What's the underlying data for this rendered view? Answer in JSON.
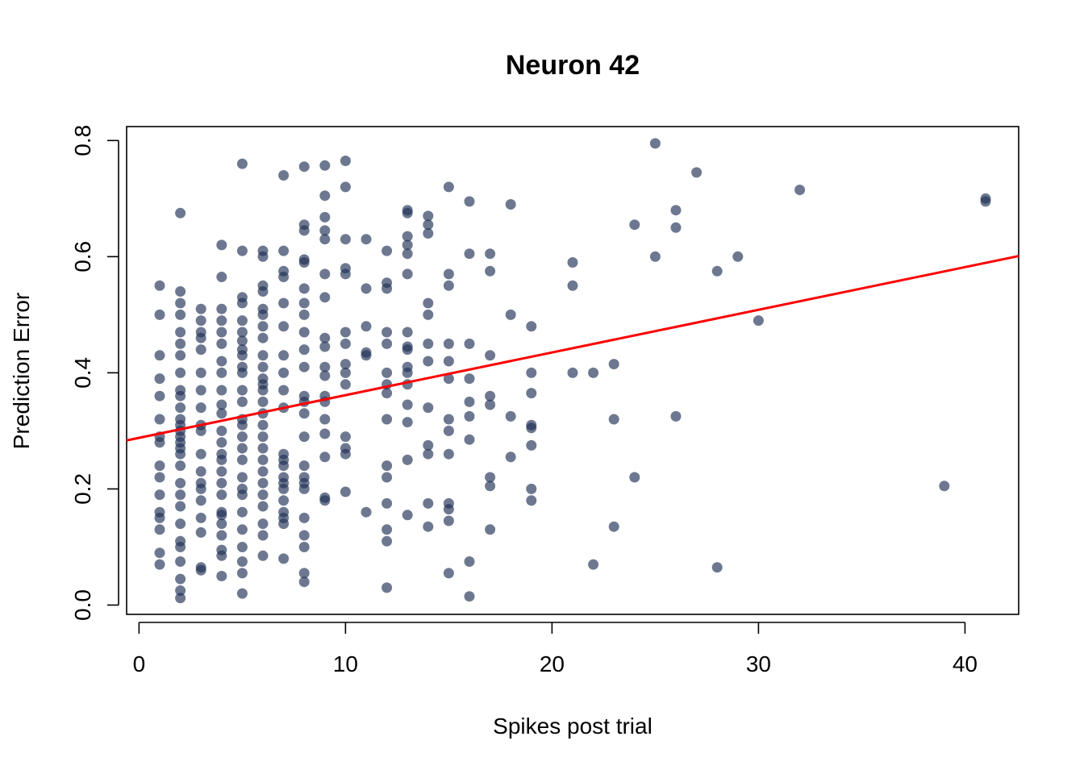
{
  "chart_data": {
    "type": "scatter",
    "title": "Neuron 42",
    "xlabel": "Spikes post trial",
    "ylabel": "Prediction Error",
    "xlim": [
      -0.6,
      42.6
    ],
    "ylim": [
      -0.016,
      0.824
    ],
    "x_ticks": [
      0,
      10,
      20,
      30,
      40
    ],
    "y_ticks": [
      0.0,
      0.2,
      0.4,
      0.6,
      0.8
    ],
    "x_tick_labels": [
      "0",
      "10",
      "20",
      "30",
      "40"
    ],
    "y_tick_labels": [
      "0.0",
      "0.2",
      "0.4",
      "0.6",
      "0.8"
    ],
    "grid": false,
    "legend": "none",
    "point_color": "#1e2f55",
    "fit_line": {
      "color": "#ff0000",
      "intercept": 0.288,
      "slope": 0.00735
    },
    "points": [
      [
        1,
        0.55
      ],
      [
        1,
        0.5
      ],
      [
        1,
        0.43
      ],
      [
        1,
        0.39
      ],
      [
        1,
        0.36
      ],
      [
        1,
        0.32
      ],
      [
        1,
        0.29
      ],
      [
        1,
        0.28
      ],
      [
        1,
        0.24
      ],
      [
        1,
        0.22
      ],
      [
        1,
        0.19
      ],
      [
        1,
        0.16
      ],
      [
        1,
        0.15
      ],
      [
        1,
        0.13
      ],
      [
        1,
        0.09
      ],
      [
        1,
        0.07
      ],
      [
        2,
        0.675
      ],
      [
        2,
        0.54
      ],
      [
        2,
        0.52
      ],
      [
        2,
        0.5
      ],
      [
        2,
        0.47
      ],
      [
        2,
        0.45
      ],
      [
        2,
        0.43
      ],
      [
        2,
        0.4
      ],
      [
        2,
        0.37
      ],
      [
        2,
        0.36
      ],
      [
        2,
        0.34
      ],
      [
        2,
        0.32
      ],
      [
        2,
        0.31
      ],
      [
        2,
        0.3
      ],
      [
        2,
        0.29
      ],
      [
        2,
        0.28
      ],
      [
        2,
        0.27
      ],
      [
        2,
        0.26
      ],
      [
        2,
        0.24
      ],
      [
        2,
        0.21
      ],
      [
        2,
        0.19
      ],
      [
        2,
        0.17
      ],
      [
        2,
        0.14
      ],
      [
        2,
        0.11
      ],
      [
        2,
        0.1
      ],
      [
        2,
        0.075
      ],
      [
        2,
        0.045
      ],
      [
        2,
        0.025
      ],
      [
        2,
        0.012
      ],
      [
        3,
        0.51
      ],
      [
        3,
        0.49
      ],
      [
        3,
        0.47
      ],
      [
        3,
        0.46
      ],
      [
        3,
        0.44
      ],
      [
        3,
        0.4
      ],
      [
        3,
        0.37
      ],
      [
        3,
        0.34
      ],
      [
        3,
        0.31
      ],
      [
        3,
        0.3
      ],
      [
        3,
        0.26
      ],
      [
        3,
        0.23
      ],
      [
        3,
        0.21
      ],
      [
        3,
        0.2
      ],
      [
        3,
        0.18
      ],
      [
        3,
        0.15
      ],
      [
        3,
        0.125
      ],
      [
        3,
        0.065
      ],
      [
        3,
        0.06
      ],
      [
        4,
        0.62
      ],
      [
        4,
        0.565
      ],
      [
        4,
        0.51
      ],
      [
        4,
        0.49
      ],
      [
        4,
        0.47
      ],
      [
        4,
        0.45
      ],
      [
        4,
        0.42
      ],
      [
        4,
        0.4
      ],
      [
        4,
        0.37
      ],
      [
        4,
        0.345
      ],
      [
        4,
        0.33
      ],
      [
        4,
        0.3
      ],
      [
        4,
        0.28
      ],
      [
        4,
        0.26
      ],
      [
        4,
        0.25
      ],
      [
        4,
        0.23
      ],
      [
        4,
        0.21
      ],
      [
        4,
        0.19
      ],
      [
        4,
        0.16
      ],
      [
        4,
        0.155
      ],
      [
        4,
        0.14
      ],
      [
        4,
        0.12
      ],
      [
        4,
        0.095
      ],
      [
        4,
        0.085
      ],
      [
        4,
        0.05
      ],
      [
        5,
        0.76
      ],
      [
        5,
        0.61
      ],
      [
        5,
        0.53
      ],
      [
        5,
        0.52
      ],
      [
        5,
        0.49
      ],
      [
        5,
        0.47
      ],
      [
        5,
        0.455
      ],
      [
        5,
        0.44
      ],
      [
        5,
        0.43
      ],
      [
        5,
        0.41
      ],
      [
        5,
        0.4
      ],
      [
        5,
        0.37
      ],
      [
        5,
        0.35
      ],
      [
        5,
        0.32
      ],
      [
        5,
        0.31
      ],
      [
        5,
        0.29
      ],
      [
        5,
        0.27
      ],
      [
        5,
        0.25
      ],
      [
        5,
        0.22
      ],
      [
        5,
        0.2
      ],
      [
        5,
        0.19
      ],
      [
        5,
        0.16
      ],
      [
        5,
        0.13
      ],
      [
        5,
        0.1
      ],
      [
        5,
        0.075
      ],
      [
        5,
        0.055
      ],
      [
        5,
        0.02
      ],
      [
        6,
        0.61
      ],
      [
        6,
        0.6
      ],
      [
        6,
        0.55
      ],
      [
        6,
        0.54
      ],
      [
        6,
        0.51
      ],
      [
        6,
        0.5
      ],
      [
        6,
        0.48
      ],
      [
        6,
        0.46
      ],
      [
        6,
        0.43
      ],
      [
        6,
        0.41
      ],
      [
        6,
        0.39
      ],
      [
        6,
        0.38
      ],
      [
        6,
        0.37
      ],
      [
        6,
        0.35
      ],
      [
        6,
        0.33
      ],
      [
        6,
        0.31
      ],
      [
        6,
        0.29
      ],
      [
        6,
        0.27
      ],
      [
        6,
        0.25
      ],
      [
        6,
        0.23
      ],
      [
        6,
        0.21
      ],
      [
        6,
        0.19
      ],
      [
        6,
        0.17
      ],
      [
        6,
        0.14
      ],
      [
        6,
        0.12
      ],
      [
        6,
        0.085
      ],
      [
        7,
        0.74
      ],
      [
        7,
        0.61
      ],
      [
        7,
        0.575
      ],
      [
        7,
        0.565
      ],
      [
        7,
        0.52
      ],
      [
        7,
        0.48
      ],
      [
        7,
        0.43
      ],
      [
        7,
        0.4
      ],
      [
        7,
        0.37
      ],
      [
        7,
        0.34
      ],
      [
        7,
        0.26
      ],
      [
        7,
        0.25
      ],
      [
        7,
        0.24
      ],
      [
        7,
        0.22
      ],
      [
        7,
        0.21
      ],
      [
        7,
        0.2
      ],
      [
        7,
        0.18
      ],
      [
        7,
        0.16
      ],
      [
        7,
        0.15
      ],
      [
        7,
        0.14
      ],
      [
        7,
        0.08
      ],
      [
        8,
        0.755
      ],
      [
        8,
        0.655
      ],
      [
        8,
        0.645
      ],
      [
        8,
        0.595
      ],
      [
        8,
        0.59
      ],
      [
        8,
        0.545
      ],
      [
        8,
        0.52
      ],
      [
        8,
        0.5
      ],
      [
        8,
        0.47
      ],
      [
        8,
        0.44
      ],
      [
        8,
        0.41
      ],
      [
        8,
        0.36
      ],
      [
        8,
        0.35
      ],
      [
        8,
        0.33
      ],
      [
        8,
        0.29
      ],
      [
        8,
        0.24
      ],
      [
        8,
        0.22
      ],
      [
        8,
        0.21
      ],
      [
        8,
        0.2
      ],
      [
        8,
        0.15
      ],
      [
        8,
        0.12
      ],
      [
        8,
        0.1
      ],
      [
        8,
        0.055
      ],
      [
        8,
        0.04
      ],
      [
        9,
        0.757
      ],
      [
        9,
        0.705
      ],
      [
        9,
        0.668
      ],
      [
        9,
        0.645
      ],
      [
        9,
        0.63
      ],
      [
        9,
        0.57
      ],
      [
        9,
        0.53
      ],
      [
        9,
        0.46
      ],
      [
        9,
        0.445
      ],
      [
        9,
        0.41
      ],
      [
        9,
        0.395
      ],
      [
        9,
        0.36
      ],
      [
        9,
        0.35
      ],
      [
        9,
        0.32
      ],
      [
        9,
        0.295
      ],
      [
        9,
        0.255
      ],
      [
        9,
        0.185
      ],
      [
        9,
        0.18
      ],
      [
        10,
        0.765
      ],
      [
        10,
        0.72
      ],
      [
        10,
        0.63
      ],
      [
        10,
        0.58
      ],
      [
        10,
        0.57
      ],
      [
        10,
        0.47
      ],
      [
        10,
        0.45
      ],
      [
        10,
        0.415
      ],
      [
        10,
        0.4
      ],
      [
        10,
        0.38
      ],
      [
        10,
        0.29
      ],
      [
        10,
        0.27
      ],
      [
        10,
        0.26
      ],
      [
        10,
        0.195
      ],
      [
        11,
        0.63
      ],
      [
        11,
        0.545
      ],
      [
        11,
        0.48
      ],
      [
        11,
        0.435
      ],
      [
        11,
        0.43
      ],
      [
        11,
        0.16
      ],
      [
        12,
        0.61
      ],
      [
        12,
        0.555
      ],
      [
        12,
        0.545
      ],
      [
        12,
        0.47
      ],
      [
        12,
        0.45
      ],
      [
        12,
        0.4
      ],
      [
        12,
        0.38
      ],
      [
        12,
        0.365
      ],
      [
        12,
        0.32
      ],
      [
        12,
        0.24
      ],
      [
        12,
        0.22
      ],
      [
        12,
        0.175
      ],
      [
        12,
        0.13
      ],
      [
        12,
        0.11
      ],
      [
        12,
        0.03
      ],
      [
        13,
        0.68
      ],
      [
        13,
        0.675
      ],
      [
        13,
        0.635
      ],
      [
        13,
        0.62
      ],
      [
        13,
        0.605
      ],
      [
        13,
        0.57
      ],
      [
        13,
        0.47
      ],
      [
        13,
        0.445
      ],
      [
        13,
        0.44
      ],
      [
        13,
        0.41
      ],
      [
        13,
        0.4
      ],
      [
        13,
        0.38
      ],
      [
        13,
        0.345
      ],
      [
        13,
        0.315
      ],
      [
        13,
        0.25
      ],
      [
        13,
        0.155
      ],
      [
        14,
        0.67
      ],
      [
        14,
        0.655
      ],
      [
        14,
        0.64
      ],
      [
        14,
        0.52
      ],
      [
        14,
        0.5
      ],
      [
        14,
        0.45
      ],
      [
        14,
        0.42
      ],
      [
        14,
        0.34
      ],
      [
        14,
        0.275
      ],
      [
        14,
        0.26
      ],
      [
        14,
        0.175
      ],
      [
        14,
        0.135
      ],
      [
        15,
        0.72
      ],
      [
        15,
        0.57
      ],
      [
        15,
        0.55
      ],
      [
        15,
        0.45
      ],
      [
        15,
        0.42
      ],
      [
        15,
        0.39
      ],
      [
        15,
        0.32
      ],
      [
        15,
        0.3
      ],
      [
        15,
        0.26
      ],
      [
        15,
        0.175
      ],
      [
        15,
        0.165
      ],
      [
        15,
        0.145
      ],
      [
        15,
        0.055
      ],
      [
        16,
        0.695
      ],
      [
        16,
        0.605
      ],
      [
        16,
        0.45
      ],
      [
        16,
        0.39
      ],
      [
        16,
        0.35
      ],
      [
        16,
        0.325
      ],
      [
        16,
        0.285
      ],
      [
        16,
        0.075
      ],
      [
        16,
        0.015
      ],
      [
        17,
        0.605
      ],
      [
        17,
        0.575
      ],
      [
        17,
        0.43
      ],
      [
        17,
        0.36
      ],
      [
        17,
        0.345
      ],
      [
        17,
        0.22
      ],
      [
        17,
        0.205
      ],
      [
        17,
        0.13
      ],
      [
        18,
        0.69
      ],
      [
        18,
        0.5
      ],
      [
        18,
        0.325
      ],
      [
        18,
        0.255
      ],
      [
        19,
        0.48
      ],
      [
        19,
        0.4
      ],
      [
        19,
        0.365
      ],
      [
        19,
        0.31
      ],
      [
        19,
        0.305
      ],
      [
        19,
        0.275
      ],
      [
        19,
        0.2
      ],
      [
        19,
        0.18
      ],
      [
        21,
        0.59
      ],
      [
        21,
        0.55
      ],
      [
        21,
        0.4
      ],
      [
        22,
        0.4
      ],
      [
        22,
        0.07
      ],
      [
        23,
        0.415
      ],
      [
        23,
        0.32
      ],
      [
        23,
        0.135
      ],
      [
        24,
        0.655
      ],
      [
        24,
        0.22
      ],
      [
        25,
        0.795
      ],
      [
        25,
        0.6
      ],
      [
        26,
        0.68
      ],
      [
        26,
        0.65
      ],
      [
        26,
        0.325
      ],
      [
        27,
        0.745
      ],
      [
        28,
        0.575
      ],
      [
        28,
        0.065
      ],
      [
        29,
        0.6
      ],
      [
        30,
        0.49
      ],
      [
        32,
        0.715
      ],
      [
        39,
        0.205
      ],
      [
        41,
        0.7
      ],
      [
        41,
        0.695
      ]
    ]
  }
}
